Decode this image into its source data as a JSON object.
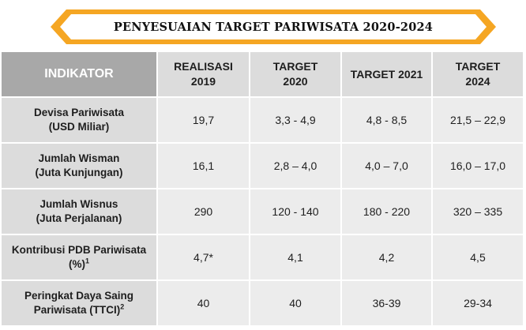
{
  "title": "PENYESUAIAN TARGET PARIWISATA 2020-2024",
  "colors": {
    "banner_orange": "#f5a623",
    "banner_inner": "#ffffff",
    "header_dark": "#a8a8a8",
    "header_light": "#dcdcdc",
    "cell_bg": "#ececec"
  },
  "headers": {
    "indikator": "INDIKATOR",
    "realisasi_line1": "REALISASI",
    "realisasi_line2": "2019",
    "target2020_line1": "TARGET",
    "target2020_line2": "2020",
    "target2021": "TARGET 2021",
    "target2024_line1": "TARGET",
    "target2024_line2": "2024"
  },
  "rows": [
    {
      "label_line1": "Devisa Pariwisata",
      "label_line2": "(USD Miliar)",
      "label_sup": "",
      "realisasi_2019": "19,7",
      "target_2020": "3,3 - 4,9",
      "target_2021": "4,8 - 8,5",
      "target_2024": "21,5 – 22,9"
    },
    {
      "label_line1": "Jumlah Wisman",
      "label_line2": "(Juta Kunjungan)",
      "label_sup": "",
      "realisasi_2019": "16,1",
      "target_2020": "2,8 – 4,0",
      "target_2021": "4,0 – 7,0",
      "target_2024": "16,0 – 17,0"
    },
    {
      "label_line1": "Jumlah Wisnus",
      "label_line2": "(Juta Perjalanan)",
      "label_sup": "",
      "realisasi_2019": "290",
      "target_2020": "120 - 140",
      "target_2021": "180 - 220",
      "target_2024": "320 – 335"
    },
    {
      "label_line1": "Kontribusi PDB Pariwisata",
      "label_line2": "(%)",
      "label_sup": "1",
      "realisasi_2019": "4,7*",
      "target_2020": "4,1",
      "target_2021": "4,2",
      "target_2024": "4,5"
    },
    {
      "label_line1": "Peringkat Daya Saing",
      "label_line2": "Pariwisata (TTCI)",
      "label_sup": "2",
      "realisasi_2019": "40",
      "target_2020": "40",
      "target_2021": "36-39",
      "target_2024": "29-34"
    }
  ]
}
